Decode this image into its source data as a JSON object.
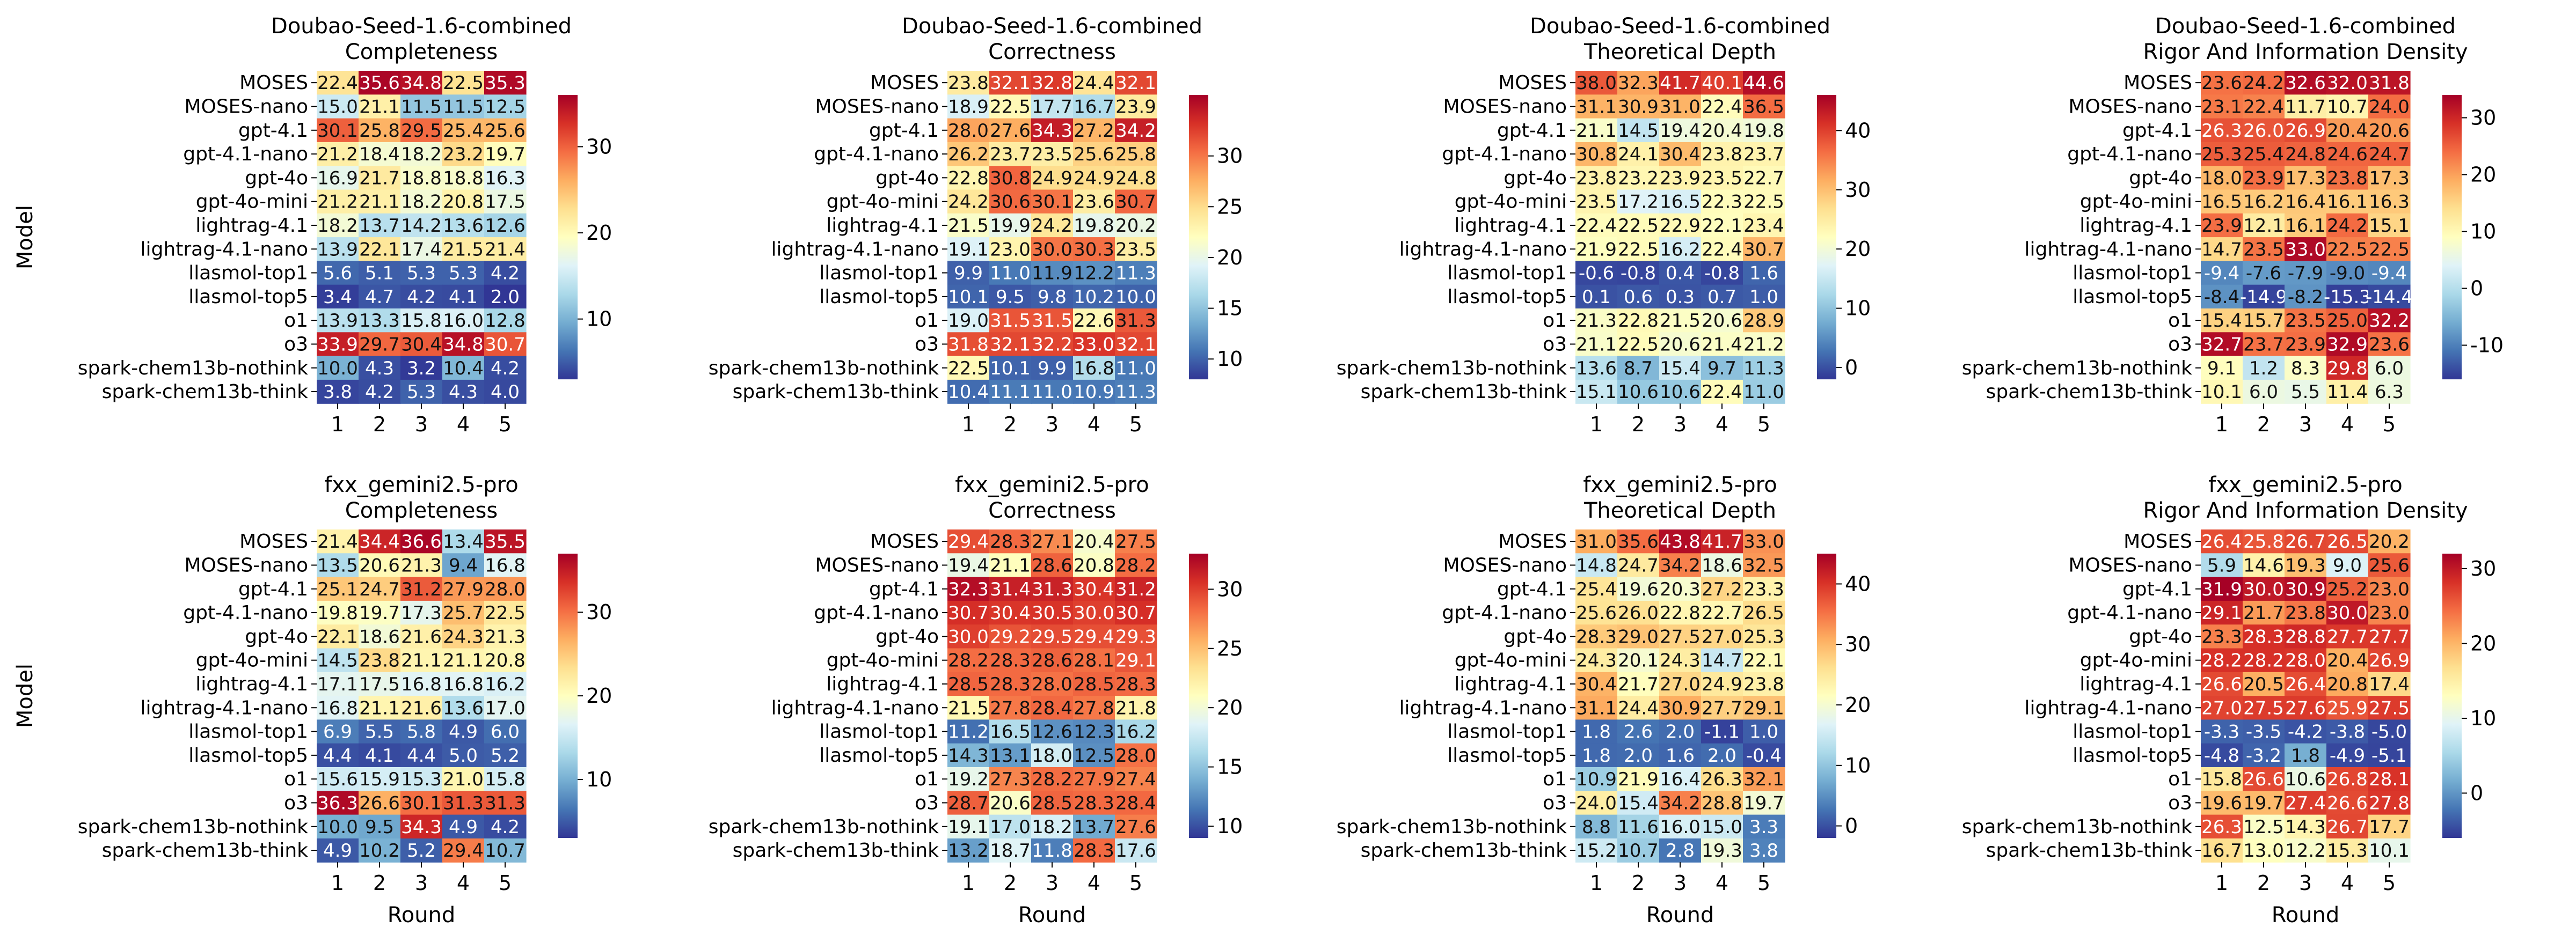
{
  "figure": {
    "rows": [
      "MOSES",
      "MOSES-nano",
      "gpt-4.1",
      "gpt-4.1-nano",
      "gpt-4o",
      "gpt-4o-mini",
      "lightrag-4.1",
      "lightrag-4.1-nano",
      "llasmol-top1",
      "llasmol-top5",
      "o1",
      "o3",
      "spark-chem13b-nothink",
      "spark-chem13b-think"
    ],
    "cols": [
      "1",
      "2",
      "3",
      "4",
      "5"
    ],
    "xlabel": "Round",
    "ylabel": "Model",
    "colormap": "RdYlBu_r"
  },
  "chart_data": [
    {
      "type": "heatmap",
      "title": "Doubao-Seed-1.6-combined",
      "subtitle": "Completeness",
      "vmin": 3,
      "vmax": 36,
      "cbar_ticks": [
        10,
        20,
        30
      ],
      "values": [
        [
          22.4,
          35.6,
          34.8,
          22.5,
          35.3
        ],
        [
          15.0,
          21.1,
          11.5,
          11.5,
          12.5
        ],
        [
          30.1,
          25.8,
          29.5,
          25.4,
          25.6
        ],
        [
          21.2,
          18.4,
          18.2,
          23.2,
          19.7
        ],
        [
          16.9,
          21.7,
          18.8,
          18.8,
          16.3
        ],
        [
          21.2,
          21.1,
          18.2,
          20.8,
          17.5
        ],
        [
          18.2,
          13.7,
          14.2,
          13.6,
          12.6
        ],
        [
          13.9,
          22.1,
          17.4,
          21.5,
          21.4
        ],
        [
          5.6,
          5.1,
          5.3,
          5.3,
          4.2
        ],
        [
          3.4,
          4.7,
          4.2,
          4.1,
          2.0
        ],
        [
          13.9,
          13.3,
          15.8,
          16.0,
          12.8
        ],
        [
          33.9,
          29.7,
          30.4,
          34.8,
          30.7
        ],
        [
          10.0,
          4.3,
          3.2,
          10.4,
          4.2
        ],
        [
          3.8,
          4.2,
          5.3,
          4.3,
          4.0
        ]
      ]
    },
    {
      "type": "heatmap",
      "title": "Doubao-Seed-1.6-combined",
      "subtitle": "Correctness",
      "vmin": 8,
      "vmax": 36,
      "cbar_ticks": [
        10,
        15,
        20,
        25,
        30
      ],
      "values": [
        [
          23.8,
          32.1,
          32.8,
          24.4,
          32.1
        ],
        [
          18.9,
          22.5,
          17.7,
          16.7,
          23.9
        ],
        [
          28.0,
          27.6,
          34.3,
          27.2,
          34.2
        ],
        [
          26.2,
          23.7,
          23.5,
          25.6,
          25.8
        ],
        [
          22.8,
          30.8,
          24.9,
          24.9,
          24.8
        ],
        [
          24.2,
          30.6,
          30.1,
          23.6,
          30.7
        ],
        [
          21.5,
          19.9,
          24.2,
          19.8,
          20.2
        ],
        [
          19.1,
          23.0,
          30.0,
          30.3,
          23.5
        ],
        [
          9.9,
          11.0,
          11.9,
          12.2,
          11.3
        ],
        [
          10.1,
          9.5,
          9.8,
          10.2,
          10.0
        ],
        [
          19.0,
          31.5,
          31.5,
          22.6,
          31.3
        ],
        [
          31.8,
          32.1,
          32.2,
          33.0,
          32.1
        ],
        [
          22.5,
          10.1,
          9.9,
          16.8,
          11.0
        ],
        [
          10.4,
          11.1,
          11.0,
          10.9,
          11.3
        ]
      ]
    },
    {
      "type": "heatmap",
      "title": "Doubao-Seed-1.6-combined",
      "subtitle": "Theoretical Depth",
      "vmin": -2,
      "vmax": 46,
      "cbar_ticks": [
        0,
        10,
        20,
        30,
        40
      ],
      "values": [
        [
          38.0,
          32.3,
          41.7,
          40.1,
          44.6
        ],
        [
          31.1,
          30.9,
          31.0,
          22.4,
          36.5
        ],
        [
          21.1,
          14.5,
          19.4,
          20.4,
          19.8
        ],
        [
          30.8,
          24.1,
          30.4,
          23.8,
          23.7
        ],
        [
          23.8,
          23.2,
          23.9,
          23.5,
          22.7
        ],
        [
          23.5,
          17.2,
          16.5,
          22.3,
          22.5
        ],
        [
          22.4,
          22.5,
          22.9,
          22.1,
          23.4
        ],
        [
          21.9,
          22.5,
          16.2,
          22.4,
          30.7
        ],
        [
          -0.6,
          -0.8,
          0.4,
          -0.8,
          1.6
        ],
        [
          0.1,
          0.6,
          0.3,
          0.7,
          1.0
        ],
        [
          21.3,
          22.8,
          21.5,
          20.6,
          28.9
        ],
        [
          21.1,
          22.5,
          20.6,
          21.4,
          21.2
        ],
        [
          13.6,
          8.7,
          15.4,
          9.7,
          11.3
        ],
        [
          15.1,
          10.6,
          10.6,
          22.4,
          11.0
        ]
      ]
    },
    {
      "type": "heatmap",
      "title": "Doubao-Seed-1.6-combined",
      "subtitle": "Rigor And Information Density",
      "vmin": -16,
      "vmax": 34,
      "cbar_ticks": [
        -10,
        0,
        10,
        20,
        30
      ],
      "values": [
        [
          23.6,
          24.2,
          32.6,
          32.0,
          31.8
        ],
        [
          23.1,
          22.4,
          11.7,
          10.7,
          24.0
        ],
        [
          26.3,
          26.0,
          26.9,
          20.4,
          20.6
        ],
        [
          25.3,
          25.4,
          24.8,
          24.6,
          24.7
        ],
        [
          18.0,
          23.9,
          17.3,
          23.8,
          17.3
        ],
        [
          16.5,
          16.2,
          16.4,
          16.1,
          16.3
        ],
        [
          23.9,
          12.1,
          16.1,
          24.2,
          15.1
        ],
        [
          14.7,
          23.5,
          33.0,
          22.5,
          22.5
        ],
        [
          -9.4,
          -7.6,
          -7.9,
          -9.0,
          -9.4
        ],
        [
          -8.4,
          -14.9,
          -8.2,
          -15.3,
          -14.4
        ],
        [
          15.4,
          15.7,
          23.5,
          25.0,
          32.2
        ],
        [
          32.7,
          23.7,
          23.9,
          32.9,
          23.6
        ],
        [
          9.1,
          1.2,
          8.3,
          29.8,
          6.0
        ],
        [
          10.1,
          6.0,
          5.5,
          11.4,
          6.3
        ]
      ]
    },
    {
      "type": "heatmap",
      "title": "fxx_gemini2.5-pro",
      "subtitle": "Completeness",
      "vmin": 3,
      "vmax": 37,
      "cbar_ticks": [
        10,
        20,
        30
      ],
      "values": [
        [
          21.4,
          34.4,
          36.6,
          13.4,
          35.5
        ],
        [
          13.5,
          20.6,
          21.3,
          9.4,
          16.8
        ],
        [
          25.1,
          24.7,
          31.2,
          27.9,
          28.0
        ],
        [
          19.8,
          19.7,
          17.3,
          25.7,
          22.5
        ],
        [
          22.1,
          18.6,
          21.6,
          24.3,
          21.3
        ],
        [
          14.5,
          23.8,
          21.1,
          21.1,
          20.8
        ],
        [
          17.1,
          17.5,
          16.8,
          16.8,
          16.2
        ],
        [
          16.8,
          21.1,
          21.6,
          13.6,
          17.0
        ],
        [
          6.9,
          5.5,
          5.8,
          4.9,
          6.0
        ],
        [
          4.4,
          4.1,
          4.4,
          5.0,
          5.2
        ],
        [
          15.6,
          15.9,
          15.3,
          21.0,
          15.8
        ],
        [
          36.3,
          26.6,
          30.1,
          31.3,
          31.3
        ],
        [
          10.0,
          9.5,
          34.3,
          4.9,
          4.2
        ],
        [
          4.9,
          10.2,
          5.2,
          29.4,
          10.7
        ]
      ]
    },
    {
      "type": "heatmap",
      "title": "fxx_gemini2.5-pro",
      "subtitle": "Correctness",
      "vmin": 9,
      "vmax": 33,
      "cbar_ticks": [
        10,
        15,
        20,
        25,
        30
      ],
      "values": [
        [
          29.4,
          28.3,
          27.1,
          20.4,
          27.5
        ],
        [
          19.4,
          21.1,
          28.6,
          20.8,
          28.2
        ],
        [
          32.3,
          31.4,
          31.3,
          30.4,
          31.2
        ],
        [
          30.7,
          30.4,
          30.5,
          30.0,
          30.7
        ],
        [
          30.0,
          29.2,
          29.5,
          29.4,
          29.3
        ],
        [
          28.2,
          28.3,
          28.6,
          28.1,
          29.1
        ],
        [
          28.5,
          28.3,
          28.0,
          28.5,
          28.3
        ],
        [
          21.5,
          27.8,
          28.4,
          27.8,
          21.8
        ],
        [
          11.2,
          16.5,
          12.6,
          12.3,
          16.2
        ],
        [
          14.3,
          13.1,
          18.0,
          12.5,
          28.0
        ],
        [
          19.2,
          27.3,
          28.2,
          27.9,
          27.4
        ],
        [
          28.7,
          20.6,
          28.5,
          28.3,
          28.4
        ],
        [
          19.1,
          17.0,
          18.2,
          13.7,
          27.6
        ],
        [
          13.2,
          18.7,
          11.8,
          28.3,
          17.6
        ]
      ]
    },
    {
      "type": "heatmap",
      "title": "fxx_gemini2.5-pro",
      "subtitle": "Theoretical Depth",
      "vmin": -2,
      "vmax": 45,
      "cbar_ticks": [
        0,
        10,
        20,
        30,
        40
      ],
      "values": [
        [
          31.0,
          35.6,
          43.8,
          41.7,
          33.0
        ],
        [
          14.8,
          24.7,
          34.2,
          18.6,
          32.5
        ],
        [
          25.4,
          19.6,
          20.3,
          27.2,
          23.3
        ],
        [
          25.6,
          26.0,
          22.8,
          22.7,
          26.5
        ],
        [
          28.3,
          29.0,
          27.5,
          27.0,
          25.3
        ],
        [
          24.3,
          20.1,
          24.3,
          14.7,
          22.1
        ],
        [
          30.4,
          21.7,
          27.0,
          24.9,
          23.8
        ],
        [
          31.1,
          24.4,
          30.9,
          27.7,
          29.1
        ],
        [
          1.8,
          2.6,
          2.0,
          -1.1,
          1.0
        ],
        [
          1.8,
          2.0,
          1.6,
          2.0,
          -0.4
        ],
        [
          10.9,
          21.9,
          16.4,
          26.3,
          32.1
        ],
        [
          24.0,
          15.4,
          34.2,
          28.8,
          19.7
        ],
        [
          8.8,
          11.6,
          16.0,
          15.0,
          3.3
        ],
        [
          15.2,
          10.7,
          2.8,
          19.3,
          3.8
        ]
      ]
    },
    {
      "type": "heatmap",
      "title": "fxx_gemini2.5-pro",
      "subtitle": "Rigor And Information Density",
      "vmin": -6,
      "vmax": 32,
      "cbar_ticks": [
        0,
        10,
        20,
        30
      ],
      "values": [
        [
          26.4,
          25.8,
          26.7,
          26.5,
          20.2
        ],
        [
          5.9,
          14.6,
          19.3,
          9.0,
          25.6
        ],
        [
          31.9,
          30.0,
          30.9,
          25.2,
          23.0
        ],
        [
          29.1,
          21.7,
          23.8,
          30.0,
          23.0
        ],
        [
          23.3,
          28.3,
          28.8,
          27.7,
          27.7
        ],
        [
          28.2,
          28.2,
          28.0,
          20.4,
          26.9
        ],
        [
          26.6,
          20.5,
          26.4,
          20.8,
          17.4
        ],
        [
          27.0,
          27.5,
          27.6,
          25.9,
          27.5
        ],
        [
          -3.3,
          -3.5,
          -4.2,
          -3.8,
          -5.0
        ],
        [
          -4.8,
          -3.2,
          1.8,
          -4.9,
          -5.1
        ],
        [
          15.8,
          26.6,
          10.6,
          26.8,
          28.1
        ],
        [
          19.6,
          19.7,
          27.4,
          26.6,
          27.8
        ],
        [
          26.3,
          12.5,
          14.3,
          26.7,
          17.7
        ],
        [
          16.7,
          13.0,
          12.2,
          15.3,
          10.1
        ]
      ]
    }
  ]
}
